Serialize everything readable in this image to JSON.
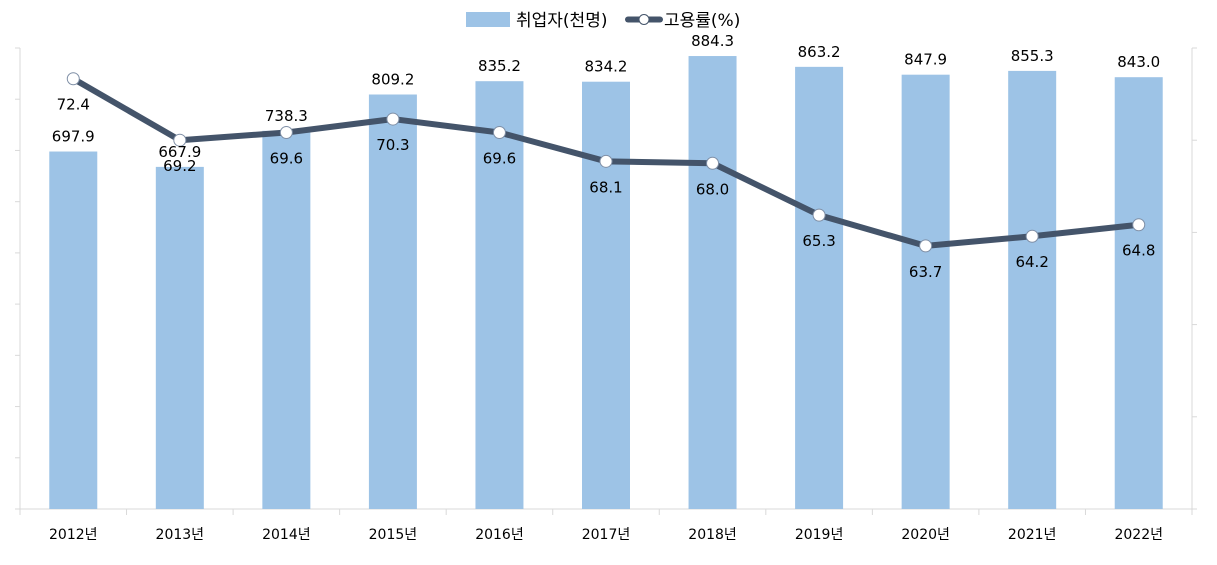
{
  "chart_data": {
    "type": "bar",
    "categories": [
      "2012년",
      "2013년",
      "2014년",
      "2015년",
      "2016년",
      "2017년",
      "2018년",
      "2019년",
      "2020년",
      "2021년",
      "2022년"
    ],
    "series": [
      {
        "name": "취업자(천명)",
        "type": "bar",
        "axis": "left",
        "color": "#9dc3e6",
        "values": [
          697.9,
          667.9,
          738.3,
          809.2,
          835.2,
          834.2,
          884.3,
          863.2,
          847.9,
          855.3,
          843.0
        ],
        "labels": [
          "697.9",
          "667.9",
          "738.3",
          "809.2",
          "835.2",
          "834.2",
          "884.3",
          "863.2",
          "847.9",
          "855.3",
          "843.0"
        ]
      },
      {
        "name": "고용률(%)",
        "type": "line",
        "axis": "right",
        "color": "#44546a",
        "values": [
          72.4,
          69.2,
          69.6,
          70.3,
          69.6,
          68.1,
          68.0,
          65.3,
          63.7,
          64.2,
          64.8
        ],
        "labels": [
          "72.4",
          "69.2",
          "69.6",
          "70.3",
          "69.6",
          "68.1",
          "68.0",
          "65.3",
          "63.7",
          "64.2",
          "64.8"
        ]
      }
    ],
    "ylim_left": [
      0,
      900
    ],
    "ylim_right": [
      50,
      74
    ],
    "legend_position": "top-center",
    "grid": false
  }
}
